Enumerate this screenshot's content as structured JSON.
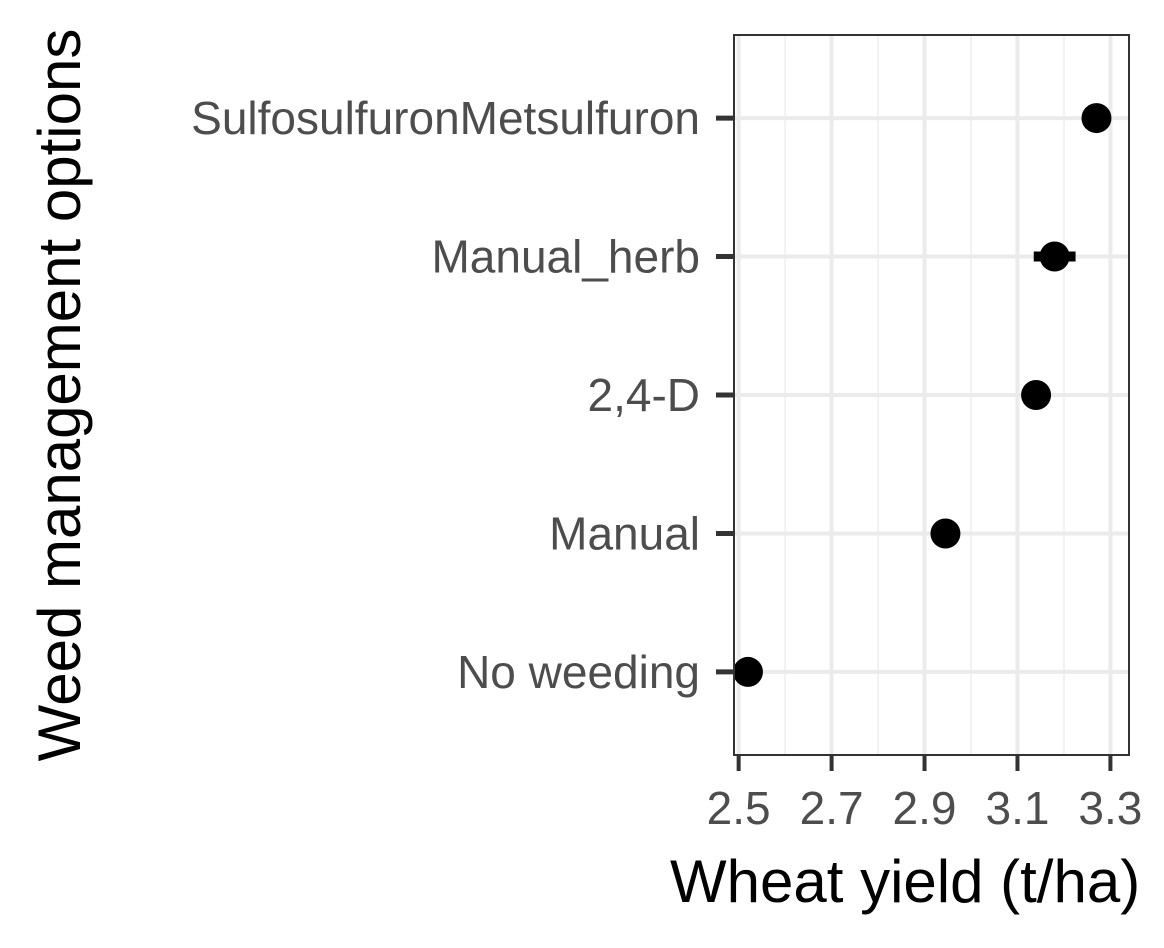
{
  "chart_data": {
    "type": "scatter",
    "title": "",
    "xlabel": "Wheat yield (t/ha)",
    "ylabel": "Weed management options",
    "xlim": [
      2.49,
      3.34
    ],
    "x_ticks": [
      "2.5",
      "2.7",
      "2.9",
      "3.1",
      "3.3"
    ],
    "grid": true,
    "legend": "none",
    "categories": [
      "SulfosulfuronMetsulfuron",
      "Manual_herb",
      "2,4-D",
      "Manual",
      "No weeding"
    ],
    "series": [
      {
        "values": [
          3.27,
          3.18,
          3.14,
          2.945,
          2.52
        ],
        "error_low": [
          3.245,
          3.135,
          3.14,
          2.945,
          2.52
        ],
        "error_high": [
          3.295,
          3.225,
          3.14,
          2.945,
          2.52
        ]
      }
    ],
    "colors": {
      "point": "#000000",
      "panel_border": "#333333",
      "grid_major": "#ebebeb",
      "grid_minor": "#f2f2f2",
      "tick_text": "#4d4d4d"
    }
  }
}
